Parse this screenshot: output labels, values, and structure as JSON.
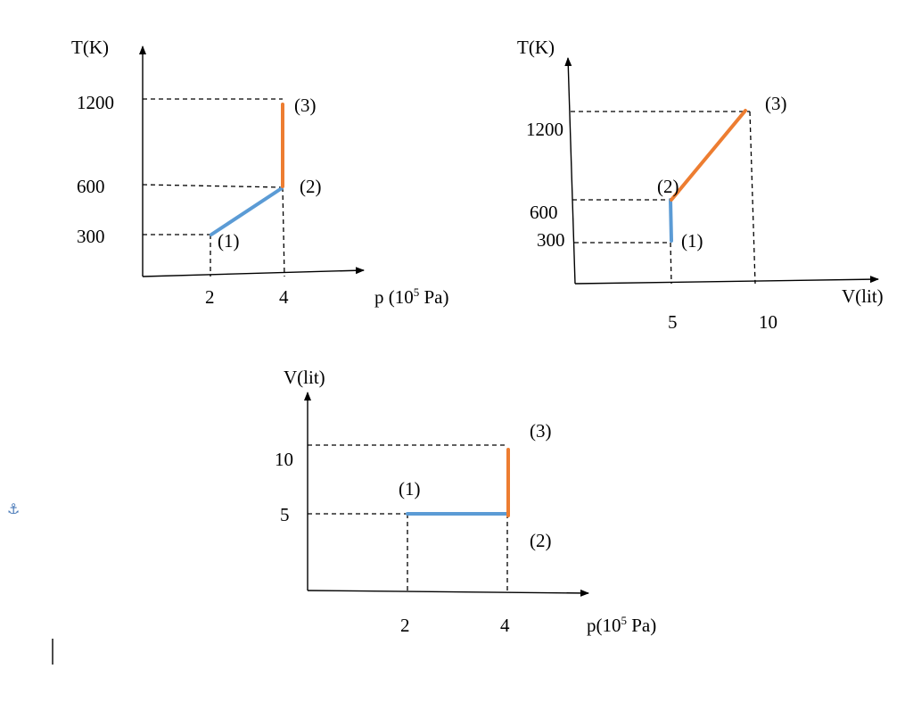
{
  "graph_tp": {
    "y_axis_label": "T(K)",
    "x_axis_label_prefix": "p (10",
    "x_axis_label_sup": "5",
    "x_axis_label_suffix": " Pa)",
    "y_ticks": [
      "1200",
      "600",
      "300"
    ],
    "x_ticks": [
      "2",
      "4"
    ],
    "point_labels": [
      "(1)",
      "(2)",
      "(3)"
    ]
  },
  "graph_tv": {
    "y_axis_label": "T(K)",
    "x_axis_label": "V(lit)",
    "y_ticks": [
      "1200",
      "600",
      "300"
    ],
    "x_ticks": [
      "5",
      "10"
    ],
    "point_labels": [
      "(1)",
      "(2)",
      "(3)"
    ]
  },
  "graph_vp": {
    "y_axis_label": "V(lit)",
    "x_axis_label_prefix": "p(10",
    "x_axis_label_sup": "5",
    "x_axis_label_suffix": " Pa)",
    "y_ticks": [
      "10",
      "5"
    ],
    "x_ticks": [
      "2",
      "4"
    ],
    "point_labels": [
      "(1)",
      "(2)",
      "(3)"
    ]
  },
  "colors": {
    "segment_1_2": "#5b9bd5",
    "segment_2_3": "#ed7d31"
  },
  "icons": {
    "anchor": "anchor-icon",
    "cursor": "text-cursor"
  }
}
